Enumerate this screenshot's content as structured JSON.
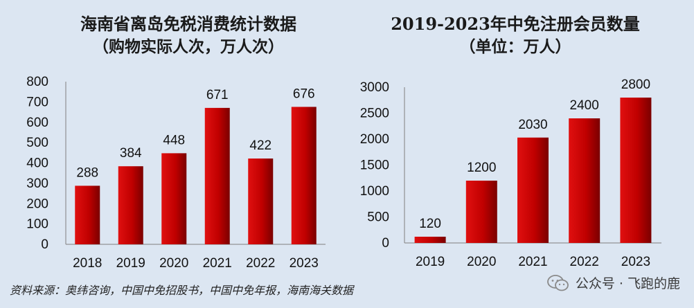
{
  "chart_data": [
    {
      "type": "bar",
      "title": "海南省离岛免税消费统计数据",
      "subtitle": "（购物实际人次，万人次）",
      "categories": [
        "2018",
        "2019",
        "2020",
        "2021",
        "2022",
        "2023"
      ],
      "values": [
        288,
        384,
        448,
        671,
        422,
        676
      ],
      "ylim": [
        0,
        800
      ],
      "yticks": [
        0,
        100,
        200,
        300,
        400,
        500,
        600,
        700,
        800
      ],
      "grid": false,
      "bar_color": "#c00000"
    },
    {
      "type": "bar",
      "title": "2019-2023年中免注册会员数量",
      "subtitle": "（单位：万人）",
      "categories": [
        "2019",
        "2020",
        "2021",
        "2022",
        "2023"
      ],
      "values": [
        120,
        1200,
        2030,
        2400,
        2800
      ],
      "ylim": [
        0,
        3000
      ],
      "yticks": [
        0,
        500,
        1000,
        1500,
        2000,
        2500,
        3000
      ],
      "grid": false,
      "bar_color": "#c00000"
    }
  ],
  "footer": {
    "source": "资料来源：奥纬咨询，中国中免招股书，中国中免年报，海南海关数据"
  },
  "watermark": {
    "icon": "wechat-icon",
    "text": "公众号 · 飞跑的鹿"
  }
}
